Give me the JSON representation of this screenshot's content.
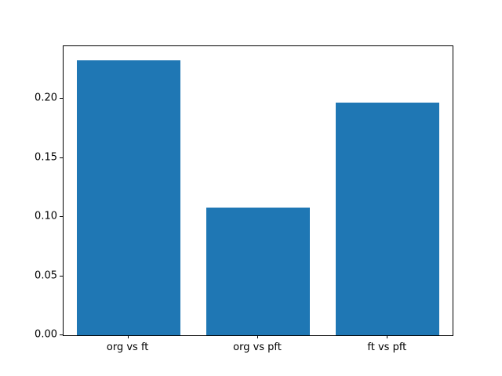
{
  "chart_data": {
    "type": "bar",
    "title": "",
    "xlabel": "",
    "ylabel": "",
    "categories": [
      "org vs ft",
      "org vs pft",
      "ft vs pft"
    ],
    "values": [
      0.233,
      0.108,
      0.197
    ],
    "ylim": [
      0,
      0.2447
    ],
    "yticks": [
      0.0,
      0.05,
      0.1,
      0.15,
      0.2
    ],
    "ytick_labels": [
      "0.00",
      "0.05",
      "0.10",
      "0.15",
      "0.20"
    ],
    "bar_color": "#1f77b4",
    "bar_width_fraction": 0.8,
    "grid": false,
    "legend": null,
    "background_color": "#ffffff",
    "spine_color": "#000000"
  }
}
